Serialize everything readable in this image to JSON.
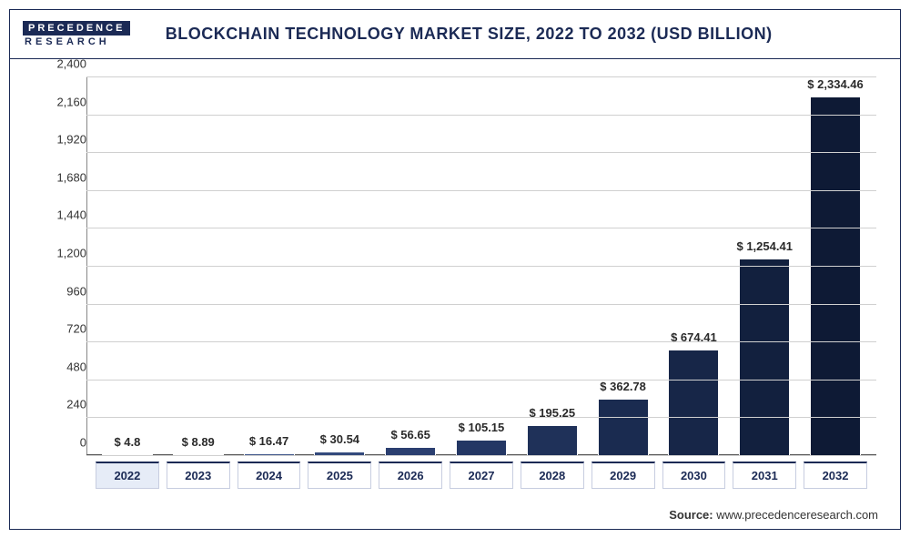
{
  "logo": {
    "top": "PRECEDENCE",
    "bottom": "RESEARCH"
  },
  "title": "BLOCKCHAIN TECHNOLOGY MARKET SIZE, 2022 TO 2032 (USD BILLION)",
  "source_label": "Source:",
  "source_value": "www.precedenceresearch.com",
  "chart": {
    "type": "bar",
    "ylim": [
      0,
      2400
    ],
    "ytick_step": 240,
    "yticks": [
      0,
      240,
      480,
      720,
      960,
      1200,
      1440,
      1680,
      1920,
      2160,
      2400
    ],
    "grid_color": "#d0d0d0",
    "background_color": "#ffffff",
    "axis_color": "#555555",
    "bar_border": "#ffffff",
    "label_fontsize": 13,
    "categories": [
      "2022",
      "2023",
      "2024",
      "2025",
      "2026",
      "2027",
      "2028",
      "2029",
      "2030",
      "2031",
      "2032"
    ],
    "values": [
      4.8,
      8.89,
      16.47,
      30.54,
      56.65,
      105.15,
      195.25,
      362.78,
      674.41,
      1254.41,
      2334.46
    ],
    "value_labels": [
      "$ 4.8",
      "$ 8.89",
      "$ 16.47",
      "$ 30.54",
      "$ 56.65",
      "$ 105.15",
      "$ 195.25",
      "$ 362.78",
      "$ 674.41",
      "$ 1,254.41",
      "$ 2,334.46"
    ],
    "bar_colors": [
      "#8aa3d4",
      "#4a6196",
      "#3e5589",
      "#33497c",
      "#2b3f70",
      "#243764",
      "#1f3159",
      "#1a2b50",
      "#172648",
      "#12203e",
      "#0e1a35"
    ],
    "highlight_index": 0
  }
}
